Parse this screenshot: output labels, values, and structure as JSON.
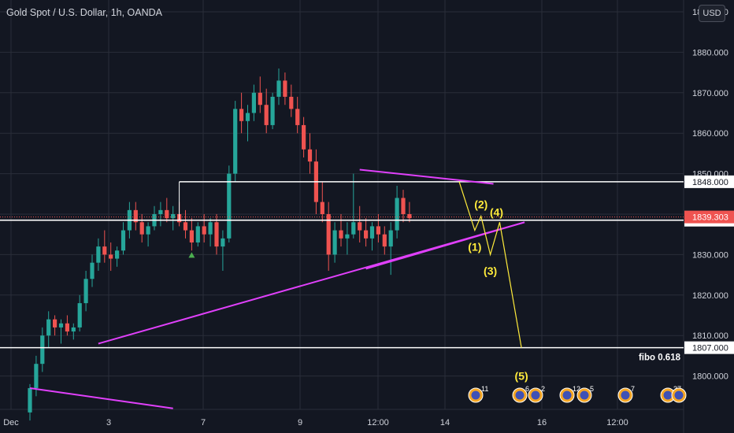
{
  "header": {
    "symbol_title": "Gold Spot / U.S. Dollar, 1h, OANDA",
    "currency_button": "USD"
  },
  "colors": {
    "background": "#131722",
    "grid": "#2a2e39",
    "text": "#d1d4dc",
    "up_candle": "#26a69a",
    "down_candle": "#ef5350",
    "trendline": "#e040fb",
    "elliott": "#ffeb3b",
    "level": "#ffffff",
    "price_tag": "#ef5350"
  },
  "chart_data": {
    "type": "candlestick",
    "title": "Gold Spot / U.S. Dollar, 1h, OANDA",
    "currency": "USD",
    "grid": true,
    "ylim": [
      1791,
      1892
    ],
    "y_ticks": [
      1800,
      1810,
      1820,
      1830,
      1840,
      1850,
      1860,
      1870,
      1880,
      1890
    ],
    "y_tick_labels": [
      "1800.000",
      "1810.000",
      "1820.000",
      "1830.000",
      "1840.000",
      "1850.000",
      "1860.000",
      "1870.000",
      "1880.000",
      "1890.000"
    ],
    "x_ticks": [
      "Dec",
      "3",
      "7",
      "9",
      "12:00",
      "14",
      "16",
      "12:00"
    ],
    "ohlc": [
      [
        1791,
        1798,
        1789,
        1797
      ],
      [
        1797,
        1805,
        1795,
        1803
      ],
      [
        1803,
        1812,
        1801,
        1810
      ],
      [
        1810,
        1816,
        1807,
        1814
      ],
      [
        1814,
        1815,
        1810,
        1812
      ],
      [
        1812,
        1814,
        1808,
        1813
      ],
      [
        1813,
        1815,
        1810,
        1811
      ],
      [
        1811,
        1813,
        1809,
        1812
      ],
      [
        1812,
        1820,
        1811,
        1818
      ],
      [
        1818,
        1826,
        1816,
        1824
      ],
      [
        1824,
        1830,
        1822,
        1828
      ],
      [
        1828,
        1834,
        1826,
        1832
      ],
      [
        1832,
        1836,
        1828,
        1830
      ],
      [
        1830,
        1833,
        1826,
        1829
      ],
      [
        1829,
        1832,
        1827,
        1831
      ],
      [
        1831,
        1838,
        1830,
        1836
      ],
      [
        1836,
        1843,
        1834,
        1841
      ],
      [
        1841,
        1843,
        1836,
        1838
      ],
      [
        1838,
        1840,
        1833,
        1835
      ],
      [
        1835,
        1838,
        1832,
        1837
      ],
      [
        1837,
        1842,
        1836,
        1840
      ],
      [
        1840,
        1843,
        1837,
        1841
      ],
      [
        1841,
        1844,
        1838,
        1839
      ],
      [
        1839,
        1842,
        1836,
        1840
      ],
      [
        1840,
        1843,
        1837,
        1838
      ],
      [
        1838,
        1841,
        1834,
        1836
      ],
      [
        1836,
        1839,
        1831,
        1833
      ],
      [
        1833,
        1838,
        1832,
        1837
      ],
      [
        1837,
        1840,
        1833,
        1835
      ],
      [
        1835,
        1839,
        1832,
        1838
      ],
      [
        1838,
        1840,
        1830,
        1832
      ],
      [
        1832,
        1836,
        1826,
        1834
      ],
      [
        1834,
        1852,
        1833,
        1850
      ],
      [
        1850,
        1868,
        1848,
        1866
      ],
      [
        1866,
        1870,
        1860,
        1863
      ],
      [
        1863,
        1867,
        1858,
        1865
      ],
      [
        1865,
        1872,
        1863,
        1870
      ],
      [
        1870,
        1874,
        1865,
        1867
      ],
      [
        1867,
        1871,
        1860,
        1862
      ],
      [
        1862,
        1870,
        1861,
        1869
      ],
      [
        1869,
        1876,
        1867,
        1873
      ],
      [
        1873,
        1875,
        1867,
        1869
      ],
      [
        1869,
        1872,
        1864,
        1866
      ],
      [
        1866,
        1869,
        1860,
        1862
      ],
      [
        1862,
        1864,
        1854,
        1856
      ],
      [
        1856,
        1860,
        1850,
        1853
      ],
      [
        1853,
        1856,
        1840,
        1843
      ],
      [
        1843,
        1848,
        1838,
        1840
      ],
      [
        1840,
        1843,
        1826,
        1830
      ],
      [
        1830,
        1838,
        1828,
        1836
      ],
      [
        1836,
        1840,
        1832,
        1834
      ],
      [
        1834,
        1838,
        1830,
        1835
      ],
      [
        1835,
        1850,
        1834,
        1838
      ],
      [
        1838,
        1842,
        1833,
        1836
      ],
      [
        1836,
        1839,
        1832,
        1834
      ],
      [
        1834,
        1838,
        1831,
        1837
      ],
      [
        1837,
        1840,
        1833,
        1835
      ],
      [
        1835,
        1837,
        1830,
        1832
      ],
      [
        1832,
        1838,
        1825,
        1836
      ],
      [
        1836,
        1847,
        1834,
        1844
      ],
      [
        1844,
        1846,
        1838,
        1840
      ],
      [
        1840,
        1843,
        1838,
        1839
      ]
    ],
    "price_levels": [
      {
        "price": 1848.0,
        "label": "1848.000"
      },
      {
        "price": 1838.5,
        "label": "1838.500"
      },
      {
        "price": 1807.0,
        "label": "1807.000",
        "annotation": "fibo 0.618"
      }
    ],
    "current_price": {
      "price": 1839.303,
      "label": "1839.303"
    },
    "wave_labels": [
      {
        "label": "(1)",
        "price": 1831,
        "slot": 71.5
      },
      {
        "label": "(2)",
        "price": 1841.5,
        "slot": 72.5
      },
      {
        "label": "(3)",
        "price": 1825,
        "slot": 74
      },
      {
        "label": "(4)",
        "price": 1839.5,
        "slot": 75
      },
      {
        "label": "(5)",
        "price": 1799,
        "slot": 79
      }
    ],
    "wave_path": [
      [
        69,
        1848
      ],
      [
        71.5,
        1836
      ],
      [
        72.5,
        1839.5
      ],
      [
        74,
        1830
      ],
      [
        75.5,
        1838
      ],
      [
        79,
        1807
      ]
    ],
    "trendlines": [
      {
        "from": [
          11,
          1808
        ],
        "to": [
          79.5,
          1838
        ]
      },
      {
        "from": [
          53,
          1851
        ],
        "to": [
          74.5,
          1847.5
        ]
      },
      {
        "from": [
          54,
          1826.5
        ],
        "to": [
          79.5,
          1838
        ]
      },
      {
        "from": [
          0,
          1797
        ],
        "to": [
          23,
          1792
        ]
      }
    ],
    "event_markers": [
      "11",
      "6",
      "2",
      "12",
      "5",
      "7",
      "37"
    ]
  }
}
